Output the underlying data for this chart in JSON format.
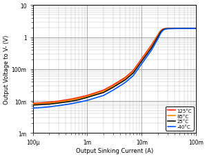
{
  "xlabel": "Output Sinking Current (A)",
  "ylabel": "Output Voltage to V- (V)",
  "x_tick_labels": [
    "100μ",
    "1m",
    "10m",
    "100m"
  ],
  "y_tick_labels": [
    "1m",
    "10m",
    "100m",
    "1",
    "10"
  ],
  "legend": [
    {
      "label": "125°C",
      "color": "#ff2200"
    },
    {
      "label": "85°C",
      "color": "#ff8800"
    },
    {
      "label": "25°C",
      "color": "#111111"
    },
    {
      "label": "-40°C",
      "color": "#0055ff"
    }
  ],
  "background_color": "#ffffff",
  "grid_major_color": "#888888",
  "grid_minor_color": "#bbbbbb",
  "linewidth": 1.2,
  "curves": {
    "125C": {
      "x": [
        0.0001,
        0.00015,
        0.0002,
        0.0003,
        0.0005,
        0.0007,
        0.001,
        0.002,
        0.003,
        0.005,
        0.007,
        0.01,
        0.015,
        0.02,
        0.022,
        0.024,
        0.026,
        0.028,
        0.03,
        0.05,
        0.1
      ],
      "y": [
        0.0085,
        0.0088,
        0.0092,
        0.01,
        0.0115,
        0.013,
        0.015,
        0.022,
        0.032,
        0.055,
        0.09,
        0.21,
        0.55,
        1.2,
        1.55,
        1.75,
        1.82,
        1.85,
        1.87,
        1.88,
        1.88
      ]
    },
    "85C": {
      "x": [
        0.0001,
        0.00015,
        0.0002,
        0.0003,
        0.0005,
        0.0007,
        0.001,
        0.002,
        0.003,
        0.005,
        0.007,
        0.01,
        0.015,
        0.02,
        0.022,
        0.024,
        0.026,
        0.028,
        0.03,
        0.05,
        0.1
      ],
      "y": [
        0.008,
        0.0083,
        0.0086,
        0.0093,
        0.0107,
        0.012,
        0.014,
        0.02,
        0.029,
        0.05,
        0.082,
        0.19,
        0.5,
        1.15,
        1.5,
        1.72,
        1.82,
        1.85,
        1.87,
        1.88,
        1.88
      ]
    },
    "25C": {
      "x": [
        0.0001,
        0.00015,
        0.0002,
        0.0003,
        0.0005,
        0.0007,
        0.001,
        0.002,
        0.003,
        0.005,
        0.007,
        0.01,
        0.015,
        0.02,
        0.022,
        0.024,
        0.026,
        0.028,
        0.03,
        0.05,
        0.1
      ],
      "y": [
        0.0075,
        0.0078,
        0.008,
        0.0087,
        0.0098,
        0.011,
        0.013,
        0.0185,
        0.027,
        0.046,
        0.075,
        0.175,
        0.45,
        1.05,
        1.4,
        1.65,
        1.78,
        1.82,
        1.85,
        1.87,
        1.87
      ]
    },
    "m40C": {
      "x": [
        0.0001,
        0.00015,
        0.0002,
        0.0003,
        0.0005,
        0.0007,
        0.001,
        0.002,
        0.003,
        0.005,
        0.007,
        0.01,
        0.015,
        0.02,
        0.022,
        0.024,
        0.026,
        0.028,
        0.03,
        0.05,
        0.1
      ],
      "y": [
        0.006,
        0.0063,
        0.0066,
        0.0072,
        0.0082,
        0.0092,
        0.0105,
        0.015,
        0.022,
        0.038,
        0.062,
        0.145,
        0.38,
        0.9,
        1.25,
        1.55,
        1.72,
        1.78,
        1.82,
        1.85,
        1.85
      ]
    }
  }
}
